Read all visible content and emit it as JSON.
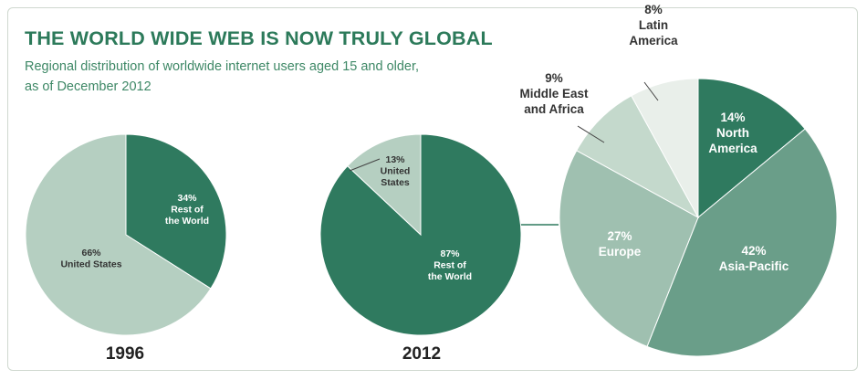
{
  "title": "THE WORLD WIDE WEB IS NOW TRULY GLOBAL",
  "subtitle_lines": [
    "Regional distribution of worldwide internet users aged 15 and older,",
    "as of December 2012"
  ],
  "colors": {
    "dark_green": "#2f7a5f",
    "medium_green": "#6a9e89",
    "light_green": "#9fc0b0",
    "pale_green": "#c4d9cc",
    "lightest_green": "#e9efea",
    "title_green": "#2c7a5a"
  },
  "chart_data": [
    {
      "type": "pie",
      "title": "1996",
      "slices": [
        {
          "label_lines": [
            "34%",
            "Rest of",
            "the World"
          ],
          "value": 34,
          "color": "#2f7a5f"
        },
        {
          "label_lines": [
            "66%",
            "United States"
          ],
          "value": 66,
          "color": "#b5cfc1"
        }
      ]
    },
    {
      "type": "pie",
      "title": "2012",
      "slices": [
        {
          "label_lines": [
            "87%",
            "Rest of",
            "the World"
          ],
          "value": 87,
          "color": "#2f7a5f"
        },
        {
          "label_lines": [
            "13%",
            "United",
            "States"
          ],
          "value": 13,
          "color": "#b5cfc1"
        }
      ]
    },
    {
      "type": "pie",
      "title": "",
      "slices": [
        {
          "label_lines": [
            "14%",
            "North",
            "America"
          ],
          "value": 14,
          "color": "#2f7a5f"
        },
        {
          "label_lines": [
            "42%",
            "Asia-Pacific"
          ],
          "value": 42,
          "color": "#6a9e89"
        },
        {
          "label_lines": [
            "27%",
            "Europe"
          ],
          "value": 27,
          "color": "#9fc0b0"
        },
        {
          "label_lines": [
            "9%",
            "Middle East",
            "and Africa"
          ],
          "value": 9,
          "color": "#c4d9cc"
        },
        {
          "label_lines": [
            "8%",
            "Latin",
            "America"
          ],
          "value": 8,
          "color": "#e9efea"
        }
      ]
    }
  ]
}
